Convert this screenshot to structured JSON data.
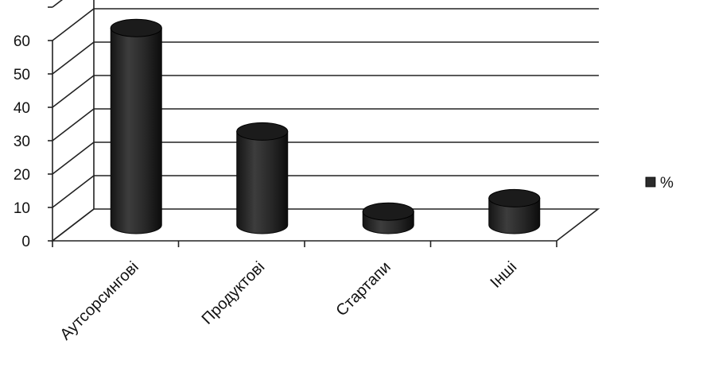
{
  "chart_data": {
    "type": "bar",
    "style": "3d-cylinder",
    "categories": [
      "Аутсорсингові",
      "Продуктові",
      "Стартапи",
      "Інші"
    ],
    "series": [
      {
        "name": "%",
        "values": [
          59,
          28,
          4,
          8
        ],
        "color": "#2b2b2b"
      }
    ],
    "title": "",
    "xlabel": "",
    "ylabel": "",
    "ylim": [
      0,
      60
    ],
    "yticks": [
      0,
      10,
      20,
      30,
      40,
      50,
      60
    ],
    "grid": true,
    "legend_position": "right"
  }
}
